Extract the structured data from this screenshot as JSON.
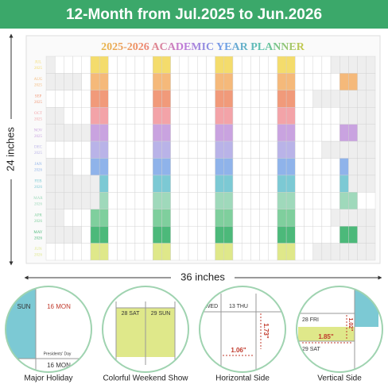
{
  "header": {
    "title": "12-Month from Jul.2025 to Jun.2026"
  },
  "planner": {
    "title": "2025-2026 ACADEMIC YEAR PLANNER",
    "months": [
      {
        "name": "JUL",
        "year": "2025",
        "color": "#f4dc6c"
      },
      {
        "name": "AUG",
        "year": "2025",
        "color": "#f5b97a"
      },
      {
        "name": "SEP",
        "year": "2025",
        "color": "#f19a7a"
      },
      {
        "name": "OCT",
        "year": "2025",
        "color": "#f3a3a8"
      },
      {
        "name": "NOV",
        "year": "2025",
        "color": "#c9a3e0"
      },
      {
        "name": "DEC",
        "year": "2025",
        "color": "#b9b3e8"
      },
      {
        "name": "JAN",
        "year": "2026",
        "color": "#8fb3ea"
      },
      {
        "name": "FEB",
        "year": "2026",
        "color": "#7cc9d4"
      },
      {
        "name": "MAR",
        "year": "2026",
        "color": "#9fd9bb"
      },
      {
        "name": "APR",
        "year": "2026",
        "color": "#7fcf9d"
      },
      {
        "name": "MAY",
        "year": "2026",
        "color": "#4cb97a"
      },
      {
        "name": "JUN",
        "year": "2026",
        "color": "#dfe88a"
      }
    ]
  },
  "dimensions": {
    "height": "24 inches",
    "width": "36 inches"
  },
  "features": [
    {
      "label": "Major Holiday",
      "texts": [
        "SUN",
        "16 MON",
        "Presidents' Day",
        "16 MON"
      ]
    },
    {
      "label": "Colorful Weekend Show",
      "texts": [
        "28 SAT",
        "29 SUN"
      ]
    },
    {
      "label": "Horizontal Side",
      "texts": [
        "WED",
        "13 THU",
        "1.73\"",
        "1.06\""
      ]
    },
    {
      "label": "Vertical Side",
      "texts": [
        "28 FRI",
        "1.02\"",
        "1.85\"",
        "29 SAT"
      ]
    }
  ]
}
